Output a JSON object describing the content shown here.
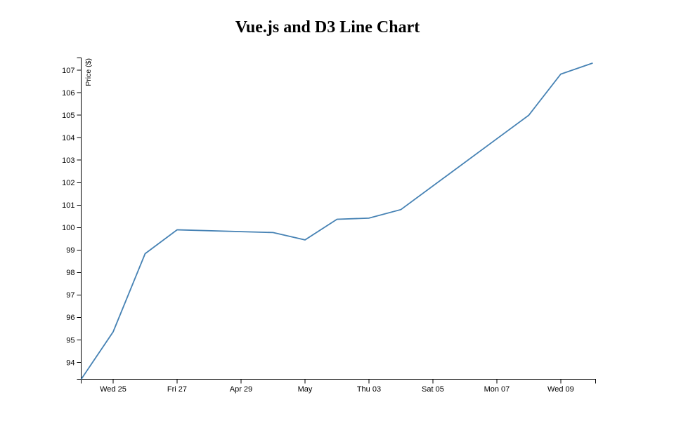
{
  "page": {
    "background": "#ffffff"
  },
  "chart_data": {
    "type": "line",
    "title": "Vue.js and D3 Line Chart",
    "xlabel": "",
    "ylabel": "Price ($)",
    "grid": false,
    "legend": false,
    "axis_color": "#000000",
    "ylim": [
      93.25,
      107.55
    ],
    "x_domain_days": 16.09,
    "y_ticks": [
      94,
      95,
      96,
      97,
      98,
      99,
      100,
      101,
      102,
      103,
      104,
      105,
      106,
      107
    ],
    "x_ticks": [
      {
        "day": 1,
        "label": "Wed 25"
      },
      {
        "day": 3,
        "label": "Fri 27"
      },
      {
        "day": 5,
        "label": "Apr 29"
      },
      {
        "day": 7,
        "label": "May"
      },
      {
        "day": 9,
        "label": "Thu 03"
      },
      {
        "day": 11,
        "label": "Sat 05"
      },
      {
        "day": 13,
        "label": "Mon 07"
      },
      {
        "day": 15,
        "label": "Wed 09"
      }
    ],
    "series": [
      {
        "name": "Price",
        "color": "#4682b4",
        "points": [
          {
            "date": "Apr 24",
            "day": 0,
            "value": 93.25
          },
          {
            "date": "Apr 25",
            "day": 1,
            "value": 95.36
          },
          {
            "date": "Apr 26",
            "day": 2,
            "value": 98.84
          },
          {
            "date": "Apr 27",
            "day": 3,
            "value": 99.9
          },
          {
            "date": "Apr 30",
            "day": 6,
            "value": 99.78
          },
          {
            "date": "May 01",
            "day": 7,
            "value": 99.45
          },
          {
            "date": "May 02",
            "day": 8,
            "value": 100.37
          },
          {
            "date": "May 03",
            "day": 9,
            "value": 100.42
          },
          {
            "date": "May 04",
            "day": 10,
            "value": 100.8
          },
          {
            "date": "May 07",
            "day": 13,
            "value": 103.95
          },
          {
            "date": "May 08",
            "day": 14,
            "value": 105.0
          },
          {
            "date": "May 09",
            "day": 15,
            "value": 106.83
          },
          {
            "date": "May 10",
            "day": 16,
            "value": 107.32
          }
        ]
      }
    ]
  }
}
